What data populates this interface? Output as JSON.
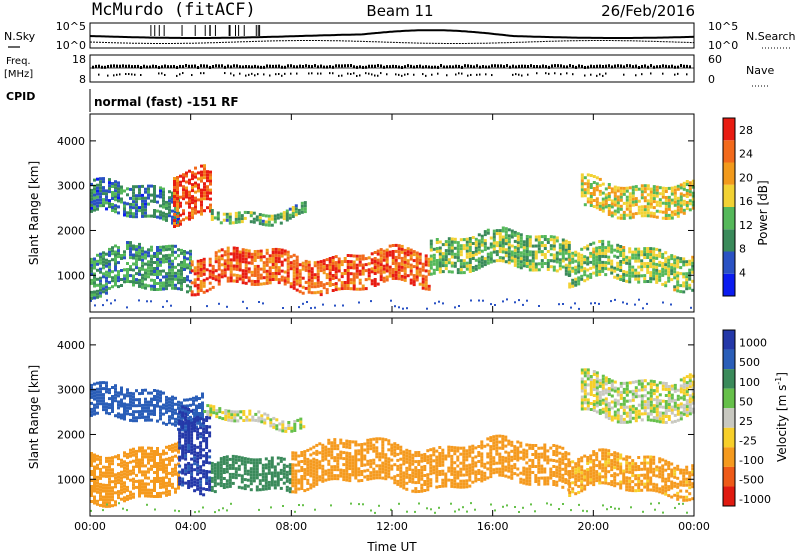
{
  "header": {
    "station": "McMurdo (fitACF)",
    "beam": "Beam 11",
    "date": "26/Feb/2016"
  },
  "noise_panel": {
    "left_label": "N.Sky",
    "left_ticks": [
      "10^5",
      "10^0"
    ],
    "right_ticks": [
      "10^5",
      "10^0"
    ],
    "right_label": "N.Search"
  },
  "freq_panel": {
    "left_label_1": "Freq.",
    "left_label_2": "[MHz]",
    "left_ticks": [
      "18",
      "8"
    ],
    "right_ticks": [
      "60",
      "0"
    ],
    "right_label": "Nave"
  },
  "cpid_panel": {
    "label": "CPID",
    "mode_text": "normal (fast) -151 RF"
  },
  "colors": {
    "colorbar_power": [
      "#0b1cf0",
      "#2a52c4",
      "#3a8a5a",
      "#55b85a",
      "#f2d234",
      "#f29a1c",
      "#f26a1c",
      "#e81c12"
    ],
    "colorbar_velocity": [
      "#2438a8",
      "#2a5eb8",
      "#3a8a5a",
      "#66c04a",
      "#c8c8c0",
      "#f7cf2a",
      "#f59a1e",
      "#ee5a18",
      "#e01a10"
    ]
  },
  "chart_data": [
    {
      "type": "heatmap",
      "title": "",
      "xlabel": "",
      "ylabel": "Slant Range [km]",
      "x_ticks": [
        "00:00",
        "04:00",
        "08:00",
        "12:00",
        "16:00",
        "20:00",
        "00:00"
      ],
      "xlim_hours": [
        0,
        24
      ],
      "y_ticks": [
        1000,
        2000,
        3000,
        4000
      ],
      "ylim": [
        180,
        4600
      ],
      "colorbar": {
        "label": "Power [dB]",
        "ticks": [
          4,
          8,
          12,
          16,
          20,
          24,
          28
        ],
        "range": [
          0,
          30
        ]
      },
      "echo_regions": [
        {
          "t_start": 0.0,
          "t_end": 3.5,
          "range_low": 2300,
          "range_high": 3000,
          "value": 8
        },
        {
          "t_start": 3.3,
          "t_end": 4.8,
          "range_low": 2200,
          "range_high": 3300,
          "value": 26
        },
        {
          "t_start": 4.8,
          "t_end": 8.5,
          "range_low": 2250,
          "range_high": 2500,
          "value": 12
        },
        {
          "t_start": 0.0,
          "t_end": 4.0,
          "range_low": 600,
          "range_high": 1600,
          "value": 10
        },
        {
          "t_start": 4.0,
          "t_end": 13.5,
          "range_low": 700,
          "range_high": 1500,
          "value": 25
        },
        {
          "t_start": 13.5,
          "t_end": 19.0,
          "range_low": 1100,
          "range_high": 1900,
          "value": 13
        },
        {
          "t_start": 19.0,
          "t_end": 24.0,
          "range_low": 800,
          "range_high": 1600,
          "value": 14
        },
        {
          "t_start": 19.5,
          "t_end": 24.0,
          "range_low": 2400,
          "range_high": 3100,
          "value": 17
        }
      ]
    },
    {
      "type": "heatmap",
      "title": "",
      "xlabel": "Time UT",
      "ylabel": "Slant Range [km]",
      "x_ticks": [
        "00:00",
        "04:00",
        "08:00",
        "12:00",
        "16:00",
        "20:00",
        "00:00"
      ],
      "xlim_hours": [
        0,
        24
      ],
      "y_ticks": [
        1000,
        2000,
        3000,
        4000
      ],
      "ylim": [
        180,
        4600
      ],
      "colorbar": {
        "label": "Velocity [m s-1]",
        "ticks": [
          "1000",
          "500",
          "100",
          "50",
          "25",
          "-25",
          "-100",
          "-500",
          "-1000"
        ]
      },
      "echo_regions": [
        {
          "t_start": 0.0,
          "t_end": 4.5,
          "range_low": 2300,
          "range_high": 3000,
          "value": 600
        },
        {
          "t_start": 4.5,
          "t_end": 8.5,
          "range_low": 2250,
          "range_high": 2500,
          "value": 0
        },
        {
          "t_start": 0.0,
          "t_end": 3.5,
          "range_low": 600,
          "range_high": 1700,
          "value": -200
        },
        {
          "t_start": 3.5,
          "t_end": 4.8,
          "range_low": 800,
          "range_high": 2600,
          "value": 800
        },
        {
          "t_start": 4.8,
          "t_end": 8.0,
          "range_low": 700,
          "range_high": 1400,
          "value": 150
        },
        {
          "t_start": 8.0,
          "t_end": 19.0,
          "range_low": 900,
          "range_high": 1800,
          "value": -200
        },
        {
          "t_start": 19.0,
          "t_end": 24.0,
          "range_low": 700,
          "range_high": 1500,
          "value": -150
        },
        {
          "t_start": 19.5,
          "t_end": 24.0,
          "range_low": 2400,
          "range_high": 3300,
          "value": 0
        }
      ]
    }
  ]
}
